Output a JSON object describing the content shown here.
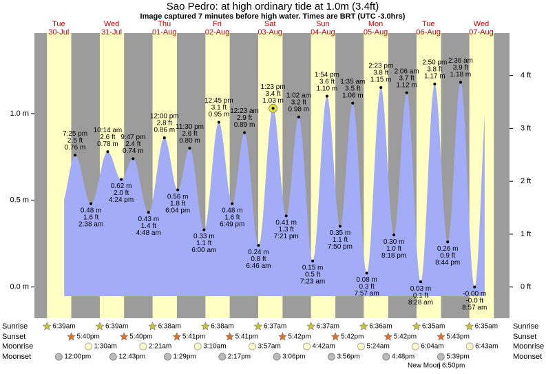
{
  "chart_data": {
    "type": "area",
    "title": "Sao Pedro: at high  ordinary tide at 1.0m (3.4ft)",
    "subtitle": "Image captured 7 minutes before high water. Times are BRT (UTC -3.0hrs)",
    "days": [
      {
        "weekday": "Tue",
        "date": "30-Jul"
      },
      {
        "weekday": "Wed",
        "date": "31-Jul"
      },
      {
        "weekday": "Thu",
        "date": "01-Aug"
      },
      {
        "weekday": "Fri",
        "date": "02-Aug"
      },
      {
        "weekday": "Sat",
        "date": "03-Aug"
      },
      {
        "weekday": "Sun",
        "date": "04-Aug"
      },
      {
        "weekday": "Mon",
        "date": "05-Aug"
      },
      {
        "weekday": "Tue",
        "date": "06-Aug"
      },
      {
        "weekday": "Wed",
        "date": "07-Aug"
      }
    ],
    "ylim": [
      -0.18,
      1.464
    ],
    "yticks": [
      {
        "value": 0,
        "label": "0.0 m"
      },
      {
        "value": 0.5,
        "label": "0.5 m"
      },
      {
        "value": 1,
        "label": "1.0 m"
      }
    ],
    "y2lim": [
      -0.59,
      4.803
    ],
    "y2ticks": [
      {
        "value": 0,
        "label": "0 ft"
      },
      {
        "value": 1,
        "label": "1 ft"
      },
      {
        "value": 2,
        "label": "2 ft"
      },
      {
        "value": 3,
        "label": "3 ft"
      },
      {
        "value": 4,
        "label": "4 ft"
      }
    ],
    "color": "#a3acf7",
    "day_color": "#ffffc4",
    "night_color": "#9c9c9c",
    "marker_index": 14,
    "tides": {
      "times": [
        "7:25 pm",
        "2:38 am",
        "10:14 am",
        "4:24 pm",
        "9:47 pm",
        "4:48 am",
        "12:00 pm",
        "6:04 pm",
        "11:30 pm",
        "6:00 am",
        "12:45 pm",
        "6:49 pm",
        "12:23 am",
        "6:46 am",
        "1:23 pm",
        "7:21 pm",
        "1:02 am",
        "7:23 am",
        "1:54 pm",
        "7:50 pm",
        "1:35 am",
        "7:57 am",
        "2:23 pm",
        "8:18 pm",
        "2:06 am",
        "8:28 am",
        "2:50 pm",
        "8:44 pm",
        "2:36 am",
        "8:57 am"
      ],
      "values": [
        0.76,
        0.48,
        0.78,
        0.62,
        0.74,
        0.43,
        0.86,
        0.56,
        0.8,
        0.33,
        0.95,
        0.48,
        0.89,
        0.24,
        1.03,
        0.41,
        0.98,
        0.15,
        1.1,
        0.35,
        1.06,
        0.08,
        1.15,
        0.3,
        1.12,
        0.03,
        1.17,
        0.26,
        1.18,
        -0.0
      ],
      "value_labels": [
        "0.76 m",
        "0.48 m",
        "0.78 m",
        "0.62 m",
        "0.74 m",
        "0.43 m",
        "0.86 m",
        "0.56 m",
        "0.80 m",
        "0.33 m",
        "0.95 m",
        "0.48 m",
        "0.89 m",
        "0.24 m",
        "1.03 m",
        "0.41 m",
        "0.98 m",
        "0.15 m",
        "1.10 m",
        "0.35 m",
        "1.06 m",
        "0.08 m",
        "1.15 m",
        "0.30 m",
        "1.12 m",
        "0.03 m",
        "1.17 m",
        "0.26 m",
        "1.18 m",
        "-0.00 m"
      ],
      "ft_labels": [
        "2.5 ft",
        "1.6 ft",
        "2.6 ft",
        "2.0 ft",
        "2.4 ft",
        "1.4 ft",
        "2.8 ft",
        "1.8 ft",
        "2.6 ft",
        "1.1 ft",
        "3.1 ft",
        "1.6 ft",
        "2.9 ft",
        "0.8 ft",
        "3.4 ft",
        "1.3 ft",
        "3.2 ft",
        "0.5 ft",
        "3.6 ft",
        "1.1 ft",
        "3.5 ft",
        "0.3 ft",
        "3.8 ft",
        "1.0 ft",
        "3.7 ft",
        "0.1 ft",
        "3.8 ft",
        "0.9 ft",
        "3.9 ft",
        "-0.0 ft"
      ]
    },
    "rows": [
      "Sunrise",
      "Sunset",
      "Moonrise",
      "Moonset"
    ],
    "sunrise": [
      "6:39am",
      "6:39am",
      "6:38am",
      "6:38am",
      "6:37am",
      "6:37am",
      "6:36am",
      "6:35am",
      "6:35am"
    ],
    "sunset": [
      "5:40pm",
      "5:40pm",
      "5:41pm",
      "5:41pm",
      "5:42pm",
      "5:42pm",
      "5:42pm",
      "5:43pm",
      null
    ],
    "moonrise": [
      null,
      "1:30am",
      "2:21am",
      "3:10am",
      "3:57am",
      "4:42am",
      "5:24am",
      "6:04am",
      "6:43am"
    ],
    "moonset": [
      "12:00pm",
      "12:43pm",
      "1:29pm",
      "2:17pm",
      "3:06pm",
      "3:56pm",
      "4:48pm",
      "5:39pm",
      null
    ],
    "moon_phase": "New Moon",
    "moon_phase_time": "6:50pm"
  }
}
